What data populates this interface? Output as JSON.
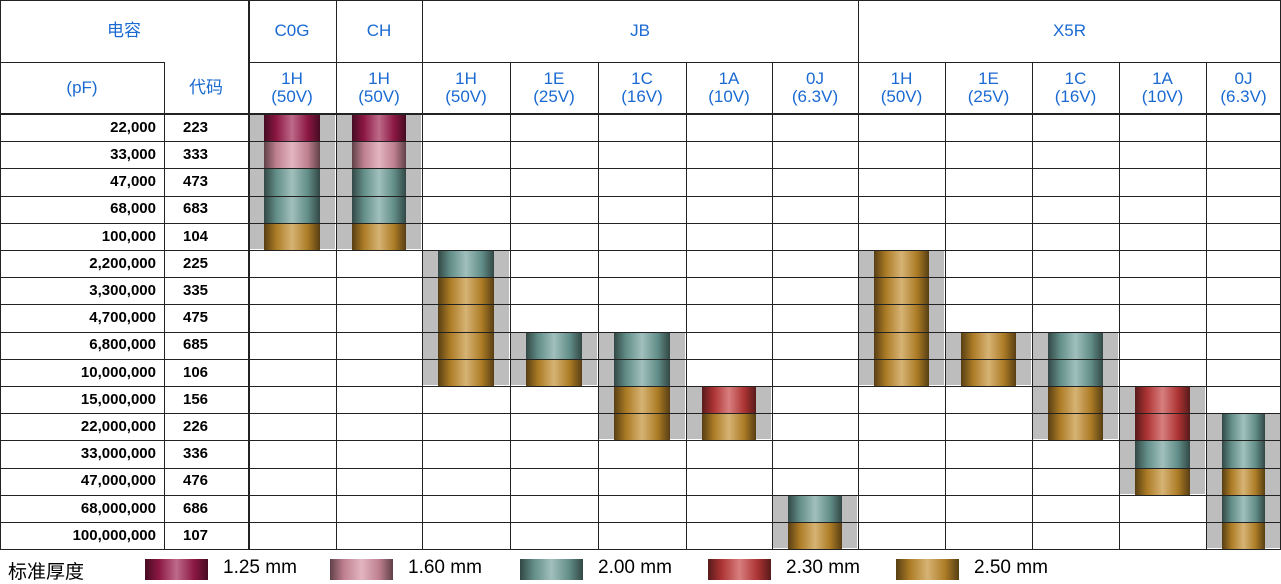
{
  "header": {
    "capacitance": "电容",
    "unit": "(pF)",
    "code": "代码",
    "dielectrics": [
      "C0G",
      "CH",
      "JB",
      "X5R"
    ]
  },
  "columns": [
    {
      "dielectric": "C0G",
      "code": "1H",
      "voltage": "(50V)"
    },
    {
      "dielectric": "CH",
      "code": "1H",
      "voltage": "(50V)"
    },
    {
      "dielectric": "JB",
      "code": "1H",
      "voltage": "(50V)"
    },
    {
      "dielectric": "JB",
      "code": "1E",
      "voltage": "(25V)"
    },
    {
      "dielectric": "JB",
      "code": "1C",
      "voltage": "(16V)"
    },
    {
      "dielectric": "JB",
      "code": "1A",
      "voltage": "(10V)"
    },
    {
      "dielectric": "JB",
      "code": "0J",
      "voltage": "(6.3V)"
    },
    {
      "dielectric": "X5R",
      "code": "1H",
      "voltage": "(50V)"
    },
    {
      "dielectric": "X5R",
      "code": "1E",
      "voltage": "(25V)"
    },
    {
      "dielectric": "X5R",
      "code": "1C",
      "voltage": "(16V)"
    },
    {
      "dielectric": "X5R",
      "code": "1A",
      "voltage": "(10V)"
    },
    {
      "dielectric": "X5R",
      "code": "0J",
      "voltage": "(6.3V)"
    }
  ],
  "rows": [
    {
      "cap": "22,000",
      "code": "223"
    },
    {
      "cap": "33,000",
      "code": "333"
    },
    {
      "cap": "47,000",
      "code": "473"
    },
    {
      "cap": "68,000",
      "code": "683"
    },
    {
      "cap": "100,000",
      "code": "104"
    },
    {
      "cap": "2,200,000",
      "code": "225"
    },
    {
      "cap": "3,300,000",
      "code": "335"
    },
    {
      "cap": "4,700,000",
      "code": "475"
    },
    {
      "cap": "6,800,000",
      "code": "685"
    },
    {
      "cap": "10,000,000",
      "code": "106"
    },
    {
      "cap": "15,000,000",
      "code": "156"
    },
    {
      "cap": "22,000,000",
      "code": "226"
    },
    {
      "cap": "33,000,000",
      "code": "336"
    },
    {
      "cap": "47,000,000",
      "code": "476"
    },
    {
      "cap": "68,000,000",
      "code": "686"
    },
    {
      "cap": "100,000,000",
      "code": "107"
    }
  ],
  "thickness_colors": {
    "1.25": "#9b1a4a",
    "1.60": "#d48ea0",
    "2.00": "#6e9e98",
    "2.30": "#c23a3a",
    "2.50": "#c08a2a"
  },
  "bars": [
    {
      "col": 0,
      "segments": [
        {
          "row_start": 0,
          "row_end": 0,
          "thickness": "1.25"
        },
        {
          "row_start": 1,
          "row_end": 1,
          "thickness": "1.60"
        },
        {
          "row_start": 2,
          "row_end": 3,
          "thickness": "2.00"
        },
        {
          "row_start": 4,
          "row_end": 4,
          "thickness": "2.50"
        }
      ]
    },
    {
      "col": 1,
      "segments": [
        {
          "row_start": 0,
          "row_end": 0,
          "thickness": "1.25"
        },
        {
          "row_start": 1,
          "row_end": 1,
          "thickness": "1.60"
        },
        {
          "row_start": 2,
          "row_end": 3,
          "thickness": "2.00"
        },
        {
          "row_start": 4,
          "row_end": 4,
          "thickness": "2.50"
        }
      ]
    },
    {
      "col": 2,
      "segments": [
        {
          "row_start": 5,
          "row_end": 5,
          "thickness": "2.00"
        },
        {
          "row_start": 6,
          "row_end": 9,
          "thickness": "2.50"
        }
      ]
    },
    {
      "col": 3,
      "segments": [
        {
          "row_start": 8,
          "row_end": 8,
          "thickness": "2.00"
        },
        {
          "row_start": 9,
          "row_end": 9,
          "thickness": "2.50"
        }
      ]
    },
    {
      "col": 4,
      "segments": [
        {
          "row_start": 8,
          "row_end": 9,
          "thickness": "2.00"
        },
        {
          "row_start": 10,
          "row_end": 11,
          "thickness": "2.50"
        }
      ]
    },
    {
      "col": 5,
      "segments": [
        {
          "row_start": 10,
          "row_end": 10,
          "thickness": "2.30"
        },
        {
          "row_start": 11,
          "row_end": 11,
          "thickness": "2.50"
        }
      ]
    },
    {
      "col": 6,
      "segments": [
        {
          "row_start": 14,
          "row_end": 14,
          "thickness": "2.00"
        },
        {
          "row_start": 15,
          "row_end": 15,
          "thickness": "2.50"
        }
      ]
    },
    {
      "col": 7,
      "segments": [
        {
          "row_start": 5,
          "row_end": 9,
          "thickness": "2.50"
        }
      ]
    },
    {
      "col": 8,
      "segments": [
        {
          "row_start": 8,
          "row_end": 9,
          "thickness": "2.50"
        }
      ]
    },
    {
      "col": 9,
      "segments": [
        {
          "row_start": 8,
          "row_end": 9,
          "thickness": "2.00"
        },
        {
          "row_start": 10,
          "row_end": 11,
          "thickness": "2.50"
        }
      ]
    },
    {
      "col": 10,
      "segments": [
        {
          "row_start": 10,
          "row_end": 11,
          "thickness": "2.30"
        },
        {
          "row_start": 12,
          "row_end": 12,
          "thickness": "2.00"
        },
        {
          "row_start": 13,
          "row_end": 13,
          "thickness": "2.50"
        }
      ]
    },
    {
      "col": 11,
      "segments": [
        {
          "row_start": 11,
          "row_end": 12,
          "thickness": "2.00"
        },
        {
          "row_start": 13,
          "row_end": 13,
          "thickness": "2.50"
        },
        {
          "row_start": 14,
          "row_end": 14,
          "thickness": "2.00"
        },
        {
          "row_start": 15,
          "row_end": 15,
          "thickness": "2.50"
        }
      ]
    }
  ],
  "legend": {
    "title": "标准厚度",
    "items": [
      {
        "thickness": "1.25",
        "label": "1.25 mm"
      },
      {
        "thickness": "1.60",
        "label": "1.60 mm"
      },
      {
        "thickness": "2.00",
        "label": "2.00 mm"
      },
      {
        "thickness": "2.30",
        "label": "2.30 mm"
      },
      {
        "thickness": "2.50",
        "label": "2.50 mm"
      }
    ]
  }
}
